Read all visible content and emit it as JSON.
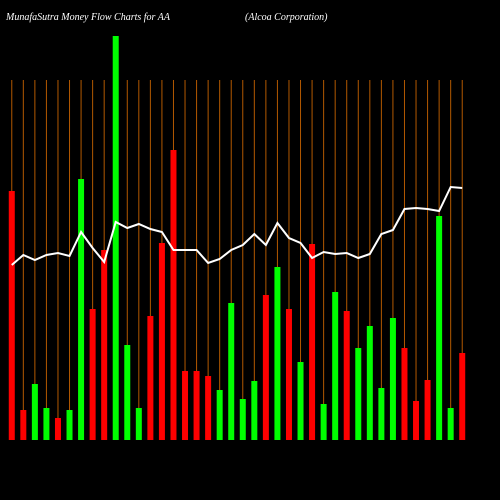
{
  "chart_data": {
    "type": "bar",
    "title": "MunafaSutra  Money Flow  Charts for AA",
    "subtitle": "(Alcoa  Corporation)",
    "categories": [
      null,
      null,
      null,
      null,
      null,
      null,
      null,
      null,
      null,
      null,
      null,
      null,
      null,
      null,
      null,
      null,
      null,
      null,
      null,
      null,
      null,
      null,
      null,
      null,
      null,
      null,
      null,
      null,
      null,
      null,
      null,
      null,
      null,
      null,
      null,
      null,
      null,
      null,
      null,
      null
    ],
    "values": [
      249,
      30,
      56,
      32,
      22,
      30,
      261,
      131,
      190,
      404,
      95,
      32,
      124,
      197,
      290,
      69,
      69,
      64,
      50,
      137,
      41,
      59,
      145,
      173,
      131,
      78,
      196,
      36,
      148,
      129,
      92,
      114,
      52,
      122,
      92,
      39,
      60,
      224,
      32,
      87
    ],
    "colors": [
      "#ff0000",
      "#ff0000",
      "#00ff00",
      "#00ff00",
      "#ff0000",
      "#00ff00",
      "#00ff00",
      "#ff0000",
      "#ff0000",
      "#00ff00",
      "#00ff00",
      "#00ff00",
      "#ff0000",
      "#ff0000",
      "#ff0000",
      "#ff0000",
      "#ff0000",
      "#ff0000",
      "#00ff00",
      "#00ff00",
      "#00ff00",
      "#00ff00",
      "#ff0000",
      "#00ff00",
      "#ff0000",
      "#00ff00",
      "#ff0000",
      "#00ff00",
      "#00ff00",
      "#ff0000",
      "#00ff00",
      "#00ff00",
      "#00ff00",
      "#00ff00",
      "#ff0000",
      "#ff0000",
      "#ff0000",
      "#00ff00",
      "#00ff00",
      "#ff0000"
    ],
    "line": {
      "color": "#ffffff",
      "values": [
        175,
        185,
        180,
        185,
        187,
        184,
        208,
        192,
        178,
        218,
        212,
        216,
        211,
        208,
        190,
        190,
        190,
        177,
        181,
        190,
        195,
        206,
        195,
        217,
        202,
        197,
        182,
        188,
        186,
        187,
        182,
        186,
        206,
        210,
        231,
        232,
        231,
        229,
        253,
        252
      ]
    },
    "grid_color": "#b35900",
    "ylim": [
      0,
      410
    ]
  }
}
